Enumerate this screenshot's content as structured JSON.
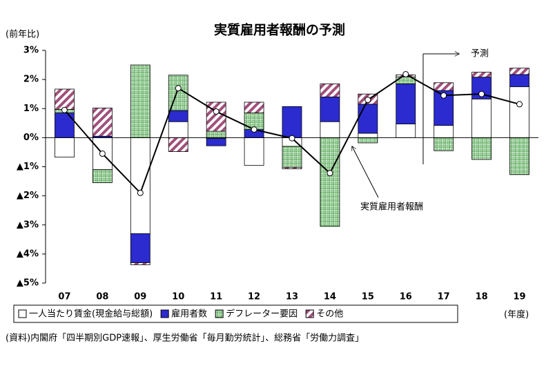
{
  "chart_data": {
    "type": "stacked_bar_line",
    "title": "実質雇用者報酬の予測",
    "y_axis_label": "(前年比)",
    "x_axis_label": "(年度)",
    "source": "(資料)内閣府「四半期別GDP速報」、厚生労働省「毎月勤労統計」、総務省「労働力調査」",
    "forecast_label": "予測",
    "categories": [
      "07",
      "08",
      "09",
      "10",
      "11",
      "12",
      "13",
      "14",
      "15",
      "16",
      "17",
      "18",
      "19"
    ],
    "ylim": [
      -5,
      3
    ],
    "yticks": [
      {
        "value": 3,
        "label": "3%"
      },
      {
        "value": 2,
        "label": "2%"
      },
      {
        "value": 1,
        "label": "1%"
      },
      {
        "value": 0,
        "label": "0%"
      },
      {
        "value": -1,
        "label": "▲1%"
      },
      {
        "value": -2,
        "label": "▲2%"
      },
      {
        "value": -3,
        "label": "▲3%"
      },
      {
        "value": -4,
        "label": "▲4%"
      },
      {
        "value": -5,
        "label": "▲5%"
      }
    ],
    "series": [
      {
        "name": "一人当たり賃金(現金給与総額)",
        "color": "#ffffff",
        "values": [
          -0.67,
          -1.1,
          -3.3,
          0.55,
          -0.03,
          -0.95,
          -0.3,
          0.55,
          0.15,
          0.47,
          0.42,
          1.33,
          1.75
        ]
      },
      {
        "name": "雇用者数",
        "color": "#2b2bd0",
        "values": [
          0.85,
          0.05,
          -1.0,
          0.38,
          -0.25,
          0.28,
          1.07,
          0.85,
          1.0,
          1.38,
          1.2,
          0.75,
          0.42
        ]
      },
      {
        "name": "デフレーター要因",
        "color": "#3a9a3a",
        "values": [
          0.12,
          -0.45,
          2.5,
          1.22,
          0.22,
          0.57,
          -0.72,
          -3.05,
          -0.18,
          0.24,
          -0.45,
          -0.75,
          -1.27
        ]
      },
      {
        "name": "その他",
        "color": "#a0507a",
        "values": [
          0.7,
          0.97,
          -0.07,
          -0.48,
          1.0,
          0.37,
          -0.05,
          0.45,
          0.35,
          0.07,
          0.27,
          0.17,
          0.22
        ]
      },
      {
        "name": "実質雇用者報酬",
        "type": "line",
        "color": "#000000",
        "values": [
          0.95,
          -0.55,
          -1.9,
          1.7,
          0.9,
          0.28,
          -0.02,
          -1.22,
          1.3,
          2.18,
          1.45,
          1.5,
          1.15
        ]
      }
    ]
  }
}
